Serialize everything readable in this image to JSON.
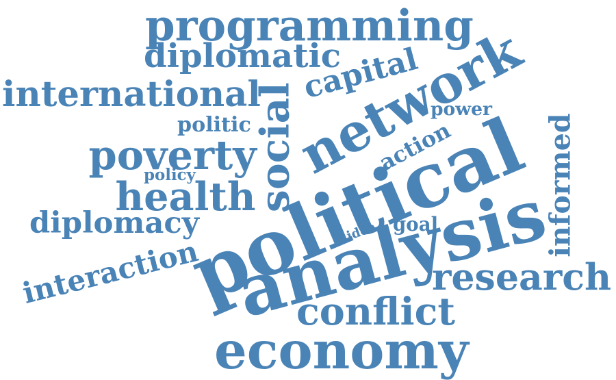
{
  "color": "#4a83b6",
  "words": [
    {
      "id": "programming",
      "text": "programming"
    },
    {
      "id": "diplomatic",
      "text": "diplomatic"
    },
    {
      "id": "network",
      "text": "network"
    },
    {
      "id": "international",
      "text": "international"
    },
    {
      "id": "capital",
      "text": "capital"
    },
    {
      "id": "social",
      "text": "social"
    },
    {
      "id": "power",
      "text": "power"
    },
    {
      "id": "politic",
      "text": "politic"
    },
    {
      "id": "poverty",
      "text": "poverty"
    },
    {
      "id": "action",
      "text": "action"
    },
    {
      "id": "informed",
      "text": "informed"
    },
    {
      "id": "policy",
      "text": "policy"
    },
    {
      "id": "health",
      "text": "health"
    },
    {
      "id": "political",
      "text": "political"
    },
    {
      "id": "diplomacy",
      "text": "diplomacy"
    },
    {
      "id": "idea",
      "text": "idea"
    },
    {
      "id": "goal",
      "text": "goal"
    },
    {
      "id": "analysis",
      "text": "analysis"
    },
    {
      "id": "interaction",
      "text": "interaction"
    },
    {
      "id": "research",
      "text": "research"
    },
    {
      "id": "conflict",
      "text": "conflict"
    },
    {
      "id": "economy",
      "text": "economy"
    }
  ]
}
